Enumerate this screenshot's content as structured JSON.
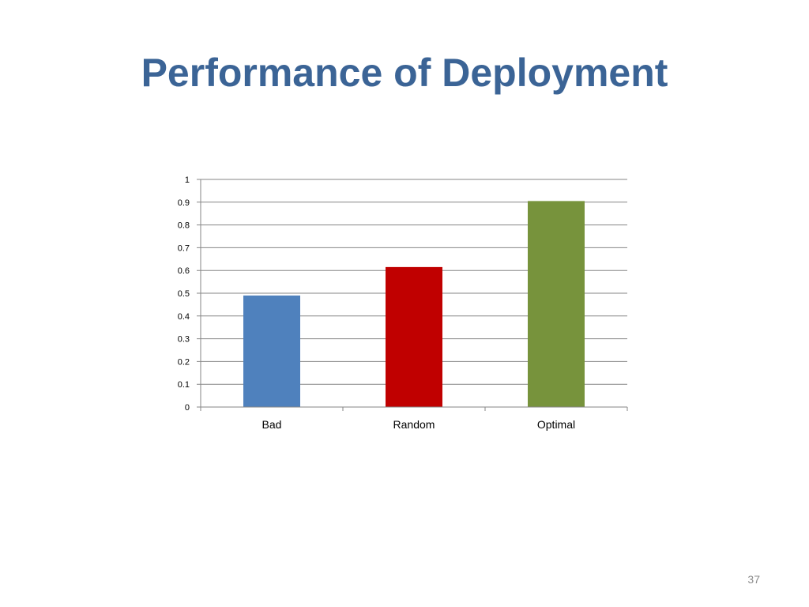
{
  "slide": {
    "title": "Performance of Deployment",
    "page_number": "37"
  },
  "colors": {
    "title": "#3b6496",
    "gridline": "#868686",
    "axis": "#868686"
  },
  "chart_data": {
    "type": "bar",
    "categories": [
      "Bad",
      "Random",
      "Optimal"
    ],
    "values": [
      0.49,
      0.615,
      0.905
    ],
    "bar_colors": [
      "#4f81bd",
      "#c00000",
      "#77933c"
    ],
    "ylim": [
      0,
      1
    ],
    "yticks": [
      "0",
      "0.1",
      "0.2",
      "0.3",
      "0.4",
      "0.5",
      "0.6",
      "0.7",
      "0.8",
      "0.9",
      "1"
    ],
    "grid": true,
    "legend": "none",
    "xlabel": "",
    "ylabel": ""
  }
}
